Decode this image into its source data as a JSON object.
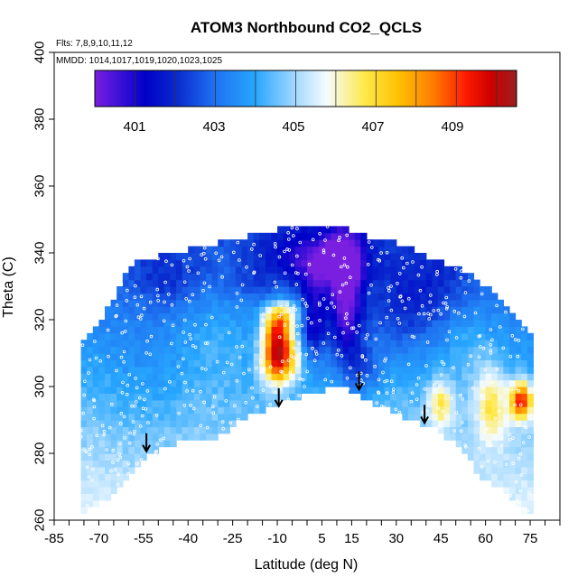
{
  "chart_data": {
    "type": "heatmap",
    "title": "ATOM3 Northbound CO2_QCLS",
    "annotations": [
      "Flts: 7,8,9,10,11,12",
      "MMDD: 1014,1017,1019,1020,1023,1025"
    ],
    "xlabel": "Latitude (deg N)",
    "ylabel": "Theta (C)",
    "xlim": [
      -85,
      85
    ],
    "ylim": [
      260,
      400
    ],
    "x_ticks": [
      -85,
      -70,
      -55,
      -40,
      -25,
      -10,
      5,
      15,
      30,
      45,
      60,
      75
    ],
    "y_ticks": [
      260,
      280,
      300,
      320,
      340,
      360,
      380,
      400
    ],
    "colorbar": {
      "range": [
        400,
        410.5
      ],
      "tick_labels": [
        "401",
        "403",
        "405",
        "407",
        "409"
      ],
      "tick_values": [
        401,
        403,
        405,
        407,
        409
      ]
    },
    "colors": {
      "low": "#7a1fe0",
      "mid_low": "#1e6ff0",
      "light_blue": "#7cc8ff",
      "mid": "#f4fbff",
      "yellow": "#ffe94a",
      "orange": "#ff9a00",
      "high": "#cc0000",
      "top": "#9a2020"
    },
    "arrows": [
      {
        "lat": -54,
        "theta": 286
      },
      {
        "lat": -9.5,
        "theta": 299.5
      },
      {
        "lat": 17.5,
        "theta": 304.5
      },
      {
        "lat": 39.5,
        "theta": 294.5
      }
    ],
    "series": [
      {
        "values": [
          {
            "lat": -10,
            "theta": 316,
            "co2": 409.5
          },
          {
            "lat": -10,
            "theta": 307,
            "co2": 409.0
          },
          {
            "lat": -8,
            "theta": 322,
            "co2": 407.0
          },
          {
            "lat": 2,
            "theta": 320,
            "co2": 402.0
          },
          {
            "lat": 13,
            "theta": 325,
            "co2": 401.0
          },
          {
            "lat": 10,
            "theta": 338,
            "co2": 402.5
          },
          {
            "lat": 72,
            "theta": 296,
            "co2": 409.5
          },
          {
            "lat": 62,
            "theta": 295,
            "co2": 406.5
          },
          {
            "lat": 45,
            "theta": 295,
            "co2": 406.5
          },
          {
            "lat": -45,
            "theta": 290,
            "co2": 404.0
          },
          {
            "lat": -30,
            "theta": 320,
            "co2": 404.5
          },
          {
            "lat": 40,
            "theta": 330,
            "co2": 403.0
          }
        ]
      }
    ]
  }
}
